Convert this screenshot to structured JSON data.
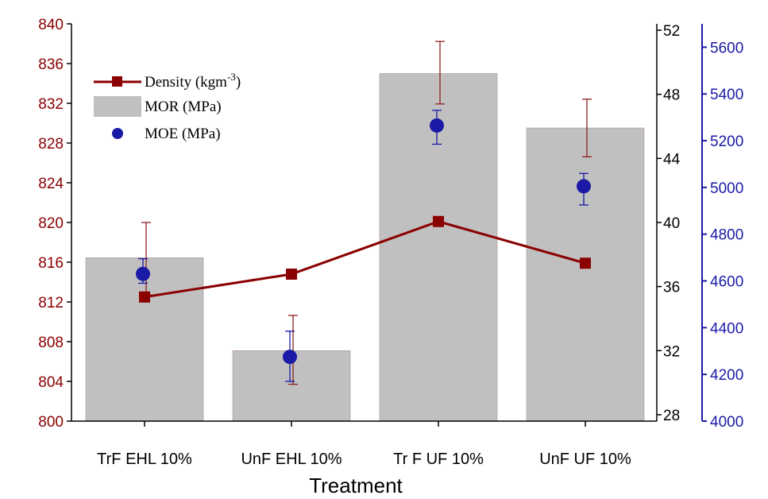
{
  "chart_data": {
    "type": "bar",
    "xlabel": "Treatment",
    "categories": [
      "TrF EHL 10%",
      "UnF EHL 10%",
      "Tr F UF 10%",
      "UnF UF 10%"
    ],
    "series": [
      {
        "name": "MOR (MPa)",
        "type": "bar",
        "axis": "right-inner",
        "values": [
          37.8,
          32.0,
          49.3,
          45.9
        ],
        "error_upper": [
          40.0,
          34.2,
          51.3,
          47.7
        ],
        "error_lower": [
          35.5,
          29.9,
          47.4,
          44.1
        ],
        "color": "#c0c0c0"
      },
      {
        "name": "Density (kgm-3)",
        "type": "line",
        "axis": "left",
        "values": [
          812.5,
          814.8,
          820.1,
          815.9
        ],
        "color": "#8b0000"
      },
      {
        "name": "MOE (MPa)",
        "type": "scatter",
        "axis": "right-outer",
        "values": [
          4630,
          4275,
          5265,
          5005
        ],
        "error_upper": [
          4695,
          4385,
          5330,
          5060
        ],
        "error_lower": [
          4590,
          4170,
          5185,
          4925
        ],
        "color": "#1a1aa6"
      }
    ],
    "axes": {
      "left": {
        "ylim": [
          800,
          840
        ],
        "ticks": [
          "800",
          "804",
          "808",
          "812",
          "816",
          "820",
          "824",
          "828",
          "832",
          "836",
          "840"
        ],
        "color": "#8b0000"
      },
      "right_inner": {
        "ylim": [
          27.6,
          52.4
        ],
        "ticks": [
          "28",
          "32",
          "36",
          "40",
          "44",
          "48",
          "52"
        ],
        "color": "#000000"
      },
      "right_outer": {
        "ylim": [
          4000,
          5700
        ],
        "ticks": [
          "4000",
          "4200",
          "4400",
          "4600",
          "4800",
          "5000",
          "5200",
          "5400",
          "5600"
        ],
        "color": "#1a1aa6"
      }
    },
    "legend": {
      "position": "top-left",
      "density_label": "Density (kgm",
      "density_sup": "-3",
      "density_close": ")",
      "mor_label": "MOR (MPa)",
      "moe_label": "MOE (MPa)"
    },
    "grid": false
  }
}
